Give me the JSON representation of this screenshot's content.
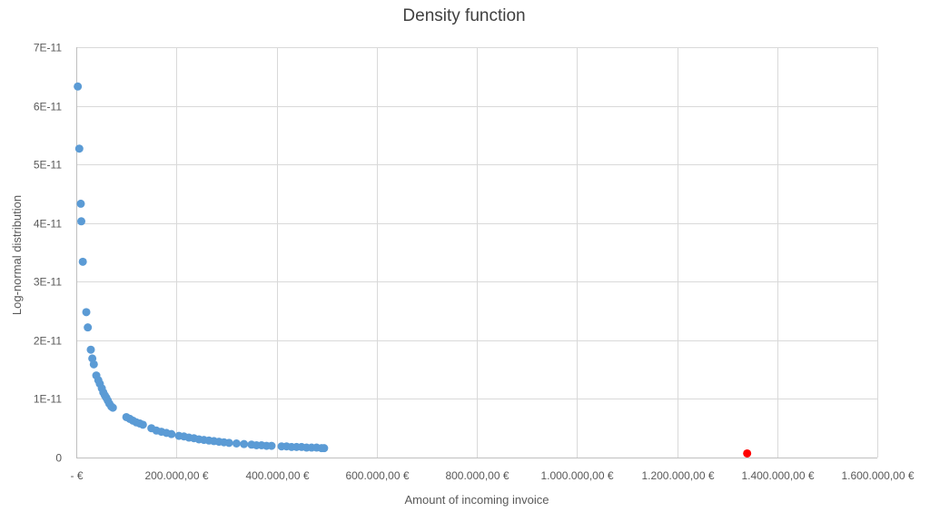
{
  "chart_data": {
    "type": "scatter",
    "title": "Density function",
    "xlabel": "Amount of incoming invoice",
    "ylabel": "Log-normal distribution",
    "xlim": [
      0,
      1600000
    ],
    "ylim": [
      0,
      7e-11
    ],
    "x_ticks": [
      {
        "value": 0,
        "label": "-  €"
      },
      {
        "value": 200000,
        "label": "200.000,00 €"
      },
      {
        "value": 400000,
        "label": "400.000,00 €"
      },
      {
        "value": 600000,
        "label": "600.000,00 €"
      },
      {
        "value": 800000,
        "label": "800.000,00 €"
      },
      {
        "value": 1000000,
        "label": "1.000.000,00 €"
      },
      {
        "value": 1200000,
        "label": "1.200.000,00 €"
      },
      {
        "value": 1400000,
        "label": "1.400.000,00 €"
      },
      {
        "value": 1600000,
        "label": "1.600.000,00 €"
      }
    ],
    "y_ticks": [
      {
        "value": 0,
        "label": "0"
      },
      {
        "value": 1e-11,
        "label": "1E-11"
      },
      {
        "value": 2e-11,
        "label": "2E-11"
      },
      {
        "value": 3e-11,
        "label": "3E-11"
      },
      {
        "value": 4e-11,
        "label": "4E-11"
      },
      {
        "value": 5e-11,
        "label": "5E-11"
      },
      {
        "value": 6e-11,
        "label": "6E-11"
      },
      {
        "value": 7e-11,
        "label": "7E-11"
      }
    ],
    "grid": true,
    "series": [
      {
        "color": "#5b9bd5",
        "points": [
          [
            3000,
            6.33e-11
          ],
          [
            6000,
            5.27e-11
          ],
          [
            9000,
            4.33e-11
          ],
          [
            10000,
            4.03e-11
          ],
          [
            13000,
            3.34e-11
          ],
          [
            20000,
            2.48e-11
          ],
          [
            23000,
            2.22e-11
          ],
          [
            29000,
            1.84e-11
          ],
          [
            32000,
            1.69e-11
          ],
          [
            35000,
            1.59e-11
          ],
          [
            40000,
            1.4e-11
          ],
          [
            44000,
            1.32e-11
          ],
          [
            47000,
            1.26e-11
          ],
          [
            51000,
            1.18e-11
          ],
          [
            54000,
            1.11e-11
          ],
          [
            57000,
            1.06e-11
          ],
          [
            60000,
            1.02e-11
          ],
          [
            63000,
            9.7e-12
          ],
          [
            66000,
            9.2e-12
          ],
          [
            70000,
            8.7e-12
          ],
          [
            73000,
            8.5e-12
          ],
          [
            100000,
            6.9e-12
          ],
          [
            107000,
            6.6e-12
          ],
          [
            113000,
            6.3e-12
          ],
          [
            120000,
            6e-12
          ],
          [
            127000,
            5.8e-12
          ],
          [
            133000,
            5.6e-12
          ],
          [
            150000,
            5e-12
          ],
          [
            160000,
            4.6e-12
          ],
          [
            170000,
            4.4e-12
          ],
          [
            180000,
            4.2e-12
          ],
          [
            190000,
            4e-12
          ],
          [
            205000,
            3.7e-12
          ],
          [
            215000,
            3.6e-12
          ],
          [
            225000,
            3.4e-12
          ],
          [
            235000,
            3.3e-12
          ],
          [
            245000,
            3.1e-12
          ],
          [
            255000,
            3e-12
          ],
          [
            265000,
            2.9e-12
          ],
          [
            275000,
            2.8e-12
          ],
          [
            285000,
            2.7e-12
          ],
          [
            295000,
            2.6e-12
          ],
          [
            305000,
            2.5e-12
          ],
          [
            320000,
            2.4e-12
          ],
          [
            335000,
            2.3e-12
          ],
          [
            350000,
            2.2e-12
          ],
          [
            360000,
            2.1e-12
          ],
          [
            370000,
            2.1e-12
          ],
          [
            380000,
            2e-12
          ],
          [
            390000,
            2e-12
          ],
          [
            410000,
            1.9e-12
          ],
          [
            420000,
            1.9e-12
          ],
          [
            430000,
            1.8e-12
          ],
          [
            440000,
            1.8e-12
          ],
          [
            450000,
            1.8e-12
          ],
          [
            460000,
            1.7e-12
          ],
          [
            470000,
            1.7e-12
          ],
          [
            480000,
            1.7e-12
          ],
          [
            490000,
            1.6e-12
          ],
          [
            495000,
            1.6e-12
          ]
        ]
      },
      {
        "color": "#ff0000",
        "points": [
          [
            1340000,
            7e-13
          ]
        ]
      }
    ]
  }
}
